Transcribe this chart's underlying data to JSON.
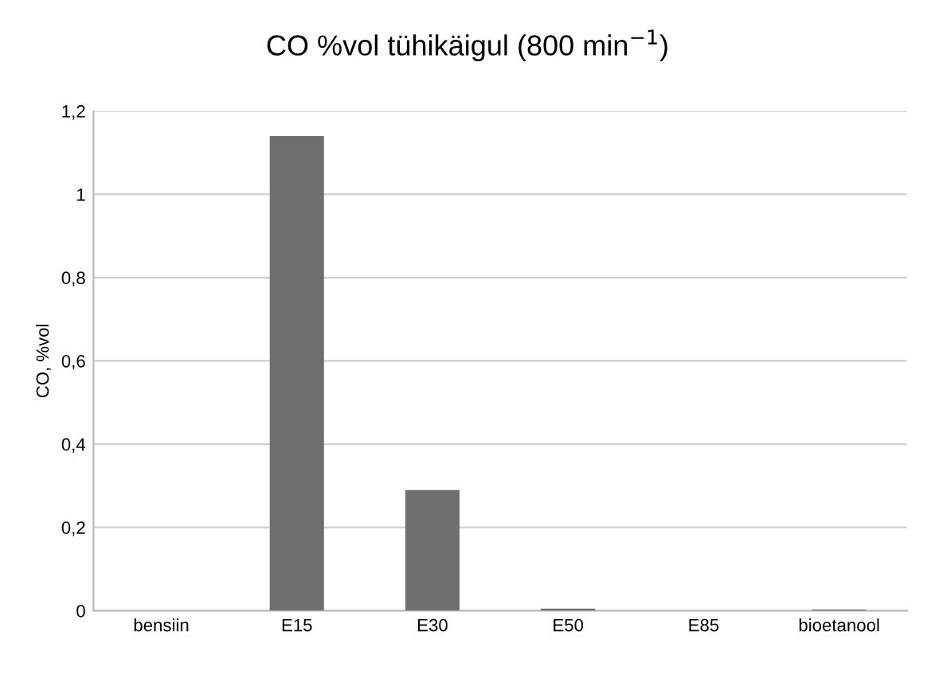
{
  "chart_data": {
    "type": "bar",
    "title": "CO %vol tühikäigul (800 min$^{−1}$)",
    "ylabel": "CO, %vol",
    "categories": [
      "bensiin",
      "E15",
      "E30",
      "E50",
      "E85",
      "bioetanool"
    ],
    "values": [
      0,
      1.14,
      0.29,
      0.005,
      0,
      0.003
    ],
    "color": "#6f6f6f",
    "ylim": [
      0,
      1.2
    ],
    "yticks": [
      0,
      {
        "value": 0.2,
        "label": "0,2"
      },
      {
        "value": 0.4,
        "label": "0,4"
      },
      {
        "value": 0.6,
        "label": "0,6"
      },
      {
        "value": 0.8,
        "label": "0,8"
      },
      1,
      {
        "value": 1.2,
        "label": "1,2"
      }
    ],
    "grid": "y",
    "legend": false
  }
}
